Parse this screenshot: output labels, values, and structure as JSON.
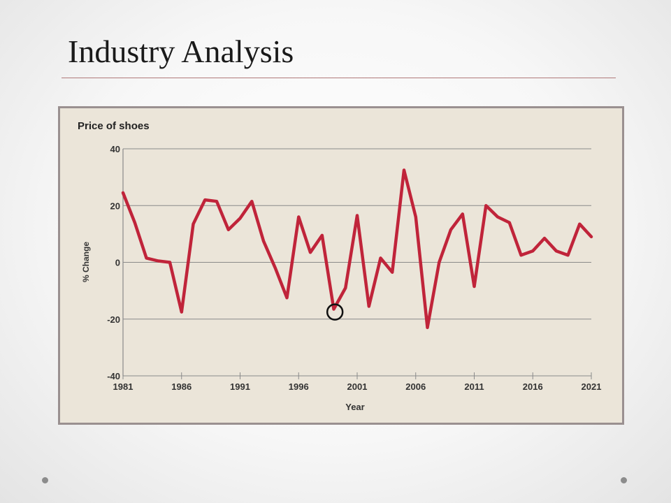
{
  "slide": {
    "title": "Industry Analysis"
  },
  "colors": {
    "line": "#c0243a",
    "panel": "#ebe5d9",
    "frame": "#9a9090",
    "grid": "#8a8a8a",
    "marker": "#111111"
  },
  "chart_data": {
    "type": "line",
    "title": "Price of shoes",
    "xlabel": "Year",
    "ylabel": "% Change",
    "xlim": [
      1981,
      2021
    ],
    "ylim": [
      -40,
      40
    ],
    "x_ticks": [
      1981,
      1986,
      1991,
      1996,
      2001,
      2006,
      2011,
      2016,
      2021
    ],
    "y_ticks": [
      40,
      20,
      0,
      -20,
      -40
    ],
    "grid": "horizontal",
    "series": [
      {
        "x": [
          1981,
          1982,
          1983,
          1984,
          1985,
          1986,
          1987,
          1988,
          1989,
          1990,
          1991,
          1992,
          1993,
          1994,
          1995,
          1996,
          1997,
          1998,
          1999,
          2000,
          2001,
          2002,
          2003,
          2004,
          2005,
          2006,
          2007,
          2008,
          2009,
          2010,
          2011,
          2012,
          2013,
          2014,
          2015,
          2016,
          2017,
          2018,
          2019,
          2020,
          2021
        ],
        "values": [
          24.5,
          14,
          1.5,
          0.5,
          0,
          -17.5,
          13.5,
          22,
          21.5,
          11.5,
          15.5,
          21.5,
          7.5,
          -2,
          -12.5,
          16,
          3.5,
          9.5,
          -16.5,
          -9,
          16.5,
          -15.5,
          1.5,
          -3.5,
          32.5,
          16,
          -23,
          0,
          11.5,
          17,
          -8.5,
          20,
          16,
          14,
          2.5,
          4,
          8.5,
          4,
          2.5,
          13.5,
          9
        ]
      }
    ],
    "highlight": {
      "x": 1999.1,
      "y": -17.5
    }
  }
}
